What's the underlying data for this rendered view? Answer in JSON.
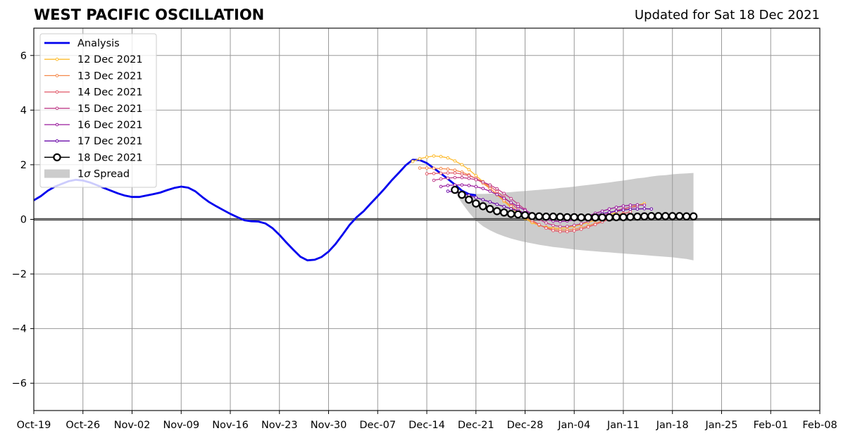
{
  "header": {
    "title": "WEST PACIFIC OSCILLATION",
    "updated": "Updated for Sat 18 Dec 2021"
  },
  "chart_data": {
    "type": "line",
    "title": "WEST PACIFIC OSCILLATION",
    "subtitle": "Updated for Sat 18 Dec 2021",
    "xlabel": "",
    "ylabel": "",
    "xlim": [
      "2021-10-19",
      "2022-02-08"
    ],
    "ylim": [
      -7,
      7
    ],
    "grid": true,
    "legend_position": "top-left",
    "x_tick_labels": [
      "Oct-19",
      "Oct-26",
      "Nov-02",
      "Nov-09",
      "Nov-16",
      "Nov-23",
      "Nov-30",
      "Dec-07",
      "Dec-14",
      "Dec-21",
      "Dec-28",
      "Jan-04",
      "Jan-11",
      "Jan-18",
      "Jan-25",
      "Feb-01",
      "Feb-08"
    ],
    "y_tick_labels": [
      "6",
      "4",
      "2",
      "0",
      "−2",
      "−4",
      "−6"
    ],
    "y_ticks": [
      6,
      4,
      2,
      0,
      -2,
      -4,
      -6
    ],
    "legend": [
      "Analysis",
      "12 Dec 2021",
      "13 Dec 2021",
      "14 Dec 2021",
      "15 Dec 2021",
      "16 Dec 2021",
      "17 Dec 2021",
      "18 Dec 2021",
      "1σ Spread"
    ],
    "spread_label_prefix": "1",
    "spread_label_sigma": "σ",
    "spread_label_suffix": " Spread",
    "colors": {
      "analysis": "#0000ee",
      "spread": "#cccccc",
      "zero_line": "#000000",
      "grid": "#999999"
    },
    "series": [
      {
        "name": "Analysis",
        "color": "#0000ee",
        "start": "2021-10-19",
        "values": [
          0.7,
          0.85,
          1.05,
          1.2,
          1.3,
          1.4,
          1.45,
          1.42,
          1.35,
          1.25,
          1.15,
          1.05,
          0.95,
          0.87,
          0.82,
          0.82,
          0.87,
          0.92,
          0.98,
          1.07,
          1.15,
          1.2,
          1.16,
          1.03,
          0.82,
          0.63,
          0.48,
          0.34,
          0.2,
          0.08,
          -0.03,
          -0.07,
          -0.08,
          -0.15,
          -0.32,
          -0.57,
          -0.85,
          -1.12,
          -1.37,
          -1.5,
          -1.48,
          -1.38,
          -1.18,
          -0.9,
          -0.56,
          -0.2,
          0.08,
          0.3,
          0.58,
          0.85,
          1.13,
          1.43,
          1.7,
          1.98,
          2.18,
          2.17,
          2.06,
          1.87,
          1.68,
          1.48,
          1.27,
          1.05,
          0.92,
          0.88
        ]
      },
      {
        "name": "12 Dec 2021",
        "color": "#fdbb2d",
        "start": "2021-12-12",
        "values": [
          2.12,
          2.22,
          2.28,
          2.32,
          2.3,
          2.25,
          2.14,
          2.0,
          1.82,
          1.6,
          1.38,
          1.14,
          0.9,
          0.66,
          0.43,
          0.22,
          0.03,
          -0.12,
          -0.22,
          -0.28,
          -0.32,
          -0.33,
          -0.3,
          -0.25,
          -0.19,
          -0.11,
          -0.03,
          0.06,
          0.16,
          0.26,
          0.36,
          0.44,
          0.52,
          0.58
        ]
      },
      {
        "name": "13 Dec 2021",
        "color": "#f5894b",
        "start": "2021-12-13",
        "values": [
          1.88,
          1.88,
          1.87,
          1.86,
          1.84,
          1.8,
          1.73,
          1.63,
          1.49,
          1.32,
          1.13,
          0.92,
          0.7,
          0.48,
          0.27,
          0.08,
          -0.08,
          -0.21,
          -0.3,
          -0.36,
          -0.39,
          -0.39,
          -0.36,
          -0.31,
          -0.24,
          -0.15,
          -0.06,
          0.04,
          0.14,
          0.23
        ]
      },
      {
        "name": "14 Dec 2021",
        "color": "#e15a6a",
        "start": "2021-12-14",
        "values": [
          1.67,
          1.68,
          1.69,
          1.7,
          1.7,
          1.66,
          1.6,
          1.5,
          1.37,
          1.21,
          1.02,
          0.81,
          0.59,
          0.37,
          0.16,
          -0.03,
          -0.19,
          -0.32,
          -0.41,
          -0.45,
          -0.45,
          -0.42,
          -0.36,
          -0.28,
          -0.19,
          -0.09,
          0.01,
          0.11,
          0.2,
          0.28
        ]
      },
      {
        "name": "15 Dec 2021",
        "color": "#c03e8a",
        "start": "2021-12-15",
        "values": [
          1.43,
          1.48,
          1.51,
          1.53,
          1.53,
          1.5,
          1.45,
          1.37,
          1.26,
          1.12,
          0.95,
          0.76,
          0.56,
          0.36,
          0.17,
          0.0,
          -0.13,
          -0.22,
          -0.26,
          -0.26,
          -0.22,
          -0.16,
          -0.07,
          0.03,
          0.13,
          0.23,
          0.32,
          0.39,
          0.44,
          0.47
        ]
      },
      {
        "name": "16 Dec 2021",
        "color": "#99199c",
        "start": "2021-12-16",
        "values": [
          1.2,
          1.24,
          1.26,
          1.26,
          1.24,
          1.2,
          1.13,
          1.03,
          0.91,
          0.77,
          0.62,
          0.47,
          0.33,
          0.2,
          0.09,
          0.0,
          -0.06,
          -0.08,
          -0.06,
          -0.02,
          0.05,
          0.13,
          0.22,
          0.3,
          0.38,
          0.44,
          0.49,
          0.52,
          0.53,
          0.52
        ]
      },
      {
        "name": "17 Dec 2021",
        "color": "#6a0aa8",
        "start": "2021-12-17",
        "values": [
          1.03,
          1.0,
          0.95,
          0.88,
          0.8,
          0.72,
          0.64,
          0.55,
          0.47,
          0.39,
          0.31,
          0.24,
          0.18,
          0.13,
          0.08,
          0.05,
          0.04,
          0.04,
          0.05,
          0.08,
          0.12,
          0.16,
          0.21,
          0.26,
          0.3,
          0.34,
          0.37,
          0.38,
          0.39,
          0.38
        ]
      },
      {
        "name": "18 Dec 2021",
        "color": "#000000",
        "start": "2021-12-18",
        "values": [
          1.08,
          0.9,
          0.72,
          0.58,
          0.48,
          0.38,
          0.3,
          0.25,
          0.2,
          0.18,
          0.15,
          0.12,
          0.11,
          0.1,
          0.1,
          0.09,
          0.08,
          0.08,
          0.07,
          0.07,
          0.07,
          0.07,
          0.07,
          0.08,
          0.08,
          0.09,
          0.1,
          0.11,
          0.12,
          0.12,
          0.12,
          0.12,
          0.12,
          0.11,
          0.11
        ]
      }
    ],
    "spread": {
      "name": "1σ Spread",
      "start": "2021-12-18",
      "upper": [
        1.05,
        1.0,
        0.96,
        0.93,
        0.93,
        0.94,
        0.96,
        0.98,
        1.0,
        1.02,
        1.04,
        1.06,
        1.08,
        1.1,
        1.12,
        1.15,
        1.17,
        1.2,
        1.23,
        1.26,
        1.29,
        1.32,
        1.35,
        1.39,
        1.42,
        1.46,
        1.5,
        1.53,
        1.57,
        1.6,
        1.62,
        1.65,
        1.67,
        1.68,
        1.7
      ],
      "lower": [
        1.0,
        0.6,
        0.25,
        -0.05,
        -0.25,
        -0.4,
        -0.52,
        -0.62,
        -0.7,
        -0.77,
        -0.83,
        -0.88,
        -0.93,
        -0.97,
        -1.01,
        -1.04,
        -1.07,
        -1.1,
        -1.13,
        -1.15,
        -1.17,
        -1.19,
        -1.21,
        -1.23,
        -1.25,
        -1.27,
        -1.29,
        -1.31,
        -1.33,
        -1.35,
        -1.37,
        -1.39,
        -1.42,
        -1.45,
        -1.5
      ]
    }
  }
}
